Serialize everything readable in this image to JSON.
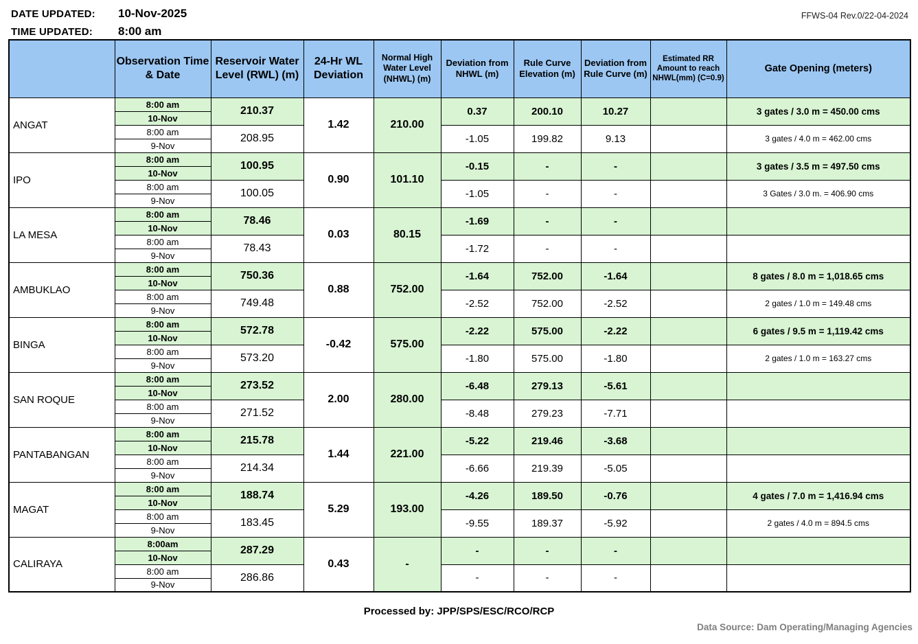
{
  "colors": {
    "header_blue": "#9CC7F3",
    "highlight_green": "#D8F4D3",
    "border_black": "#000000",
    "data_source_gray": "#7F7F7F"
  },
  "meta": {
    "date_label": "DATE UPDATED:",
    "date_value": "10-Nov-2025",
    "time_label": "TIME UPDATED:",
    "time_value": "8:00 am",
    "form_ref": "FFWS-04 Rev.0/22-04-2024"
  },
  "table": {
    "headers": {
      "dam": "",
      "observation": "Observation Time & Date",
      "rwl": "Reservoir Water Level (RWL) (m)",
      "dev24": "24-Hr WL Deviation",
      "nhwl": "Normal High Water Level (NHWL) (m)",
      "dev_nhwl": "Deviation from NHWL (m)",
      "rule_curve": "Rule Curve Elevation (m)",
      "dev_rule": "Deviation from Rule Curve (m)",
      "est_rr": "Estimated RR Amount to reach NHWL(mm) (C=0.9)",
      "gate": "Gate Opening (meters)"
    },
    "dams": [
      {
        "name": "ANGAT",
        "wl_deviation_24hr": "1.42",
        "nhwl": "210.00",
        "current": {
          "time": "8:00 am",
          "date": "10-Nov",
          "rwl": "210.37",
          "dev_nhwl": "0.37",
          "rule_curve": "200.10",
          "dev_rule": "10.27",
          "est_rr": "",
          "gate": "3 gates / 3.0 m = 450.00 cms"
        },
        "previous": {
          "time": "8:00 am",
          "date": "9-Nov",
          "rwl": "208.95",
          "dev_nhwl": "-1.05",
          "rule_curve": "199.82",
          "dev_rule": "9.13",
          "est_rr": "",
          "gate": "3 gates / 4.0 m = 462.00 cms"
        }
      },
      {
        "name": "IPO",
        "wl_deviation_24hr": "0.90",
        "nhwl": "101.10",
        "current": {
          "time": "8:00 am",
          "date": "10-Nov",
          "rwl": "100.95",
          "dev_nhwl": "-0.15",
          "rule_curve": "-",
          "dev_rule": "-",
          "est_rr": "",
          "gate": "3 gates / 3.5 m = 497.50 cms"
        },
        "previous": {
          "time": "8:00 am",
          "date": "9-Nov",
          "rwl": "100.05",
          "dev_nhwl": "-1.05",
          "rule_curve": "-",
          "dev_rule": "-",
          "est_rr": "",
          "gate": "3 Gates / 3.0 m. = 406.90 cms"
        }
      },
      {
        "name": "LA MESA",
        "wl_deviation_24hr": "0.03",
        "nhwl": "80.15",
        "current": {
          "time": "8:00 am",
          "date": "10-Nov",
          "rwl": "78.46",
          "dev_nhwl": "-1.69",
          "rule_curve": "-",
          "dev_rule": "-",
          "est_rr": "",
          "gate": ""
        },
        "previous": {
          "time": "8:00 am",
          "date": "9-Nov",
          "rwl": "78.43",
          "dev_nhwl": "-1.72",
          "rule_curve": "-",
          "dev_rule": "-",
          "est_rr": "",
          "gate": ""
        }
      },
      {
        "name": "AMBUKLAO",
        "wl_deviation_24hr": "0.88",
        "nhwl": "752.00",
        "current": {
          "time": "8:00 am",
          "date": "10-Nov",
          "rwl": "750.36",
          "dev_nhwl": "-1.64",
          "rule_curve": "752.00",
          "dev_rule": "-1.64",
          "est_rr": "",
          "gate": "8 gates / 8.0 m = 1,018.65 cms"
        },
        "previous": {
          "time": "8:00 am",
          "date": "9-Nov",
          "rwl": "749.48",
          "dev_nhwl": "-2.52",
          "rule_curve": "752.00",
          "dev_rule": "-2.52",
          "est_rr": "",
          "gate": "2 gates / 1.0 m = 149.48 cms"
        }
      },
      {
        "name": "BINGA",
        "wl_deviation_24hr": "-0.42",
        "nhwl": "575.00",
        "current": {
          "time": "8:00 am",
          "date": "10-Nov",
          "rwl": "572.78",
          "dev_nhwl": "-2.22",
          "rule_curve": "575.00",
          "dev_rule": "-2.22",
          "est_rr": "",
          "gate": "6 gates / 9.5 m = 1,119.42 cms"
        },
        "previous": {
          "time": "8:00 am",
          "date": "9-Nov",
          "rwl": "573.20",
          "dev_nhwl": "-1.80",
          "rule_curve": "575.00",
          "dev_rule": "-1.80",
          "est_rr": "",
          "gate": "2 gates / 1.0 m = 163.27 cms"
        }
      },
      {
        "name": "SAN ROQUE",
        "wl_deviation_24hr": "2.00",
        "nhwl": "280.00",
        "current": {
          "time": "8:00 am",
          "date": "10-Nov",
          "rwl": "273.52",
          "dev_nhwl": "-6.48",
          "rule_curve": "279.13",
          "dev_rule": "-5.61",
          "est_rr": "",
          "gate": ""
        },
        "previous": {
          "time": "8:00 am",
          "date": "9-Nov",
          "rwl": "271.52",
          "dev_nhwl": "-8.48",
          "rule_curve": "279.23",
          "dev_rule": "-7.71",
          "est_rr": "",
          "gate": ""
        }
      },
      {
        "name": "PANTABANGAN",
        "wl_deviation_24hr": "1.44",
        "nhwl": "221.00",
        "current": {
          "time": "8:00 am",
          "date": "10-Nov",
          "rwl": "215.78",
          "dev_nhwl": "-5.22",
          "rule_curve": "219.46",
          "dev_rule": "-3.68",
          "est_rr": "",
          "gate": ""
        },
        "previous": {
          "time": "8:00 am",
          "date": "9-Nov",
          "rwl": "214.34",
          "dev_nhwl": "-6.66",
          "rule_curve": "219.39",
          "dev_rule": "-5.05",
          "est_rr": "",
          "gate": ""
        }
      },
      {
        "name": "MAGAT",
        "wl_deviation_24hr": "5.29",
        "nhwl": "193.00",
        "current": {
          "time": "8:00 am",
          "date": "10-Nov",
          "rwl": "188.74",
          "dev_nhwl": "-4.26",
          "rule_curve": "189.50",
          "dev_rule": "-0.76",
          "est_rr": "",
          "gate": "4 gates / 7.0 m = 1,416.94 cms"
        },
        "previous": {
          "time": "8:00 am",
          "date": "9-Nov",
          "rwl": "183.45",
          "dev_nhwl": "-9.55",
          "rule_curve": "189.37",
          "dev_rule": "-5.92",
          "est_rr": "",
          "gate": "2 gates / 4.0 m = 894.5 cms"
        }
      },
      {
        "name": "CALIRAYA",
        "wl_deviation_24hr": "0.43",
        "nhwl": "-",
        "current": {
          "time": "8:00am",
          "date": "10-Nov",
          "rwl": "287.29",
          "dev_nhwl": "-",
          "rule_curve": "-",
          "dev_rule": "-",
          "est_rr": "",
          "gate": ""
        },
        "previous": {
          "time": "8:00 am",
          "date": "9-Nov",
          "rwl": "286.86",
          "dev_nhwl": "-",
          "rule_curve": "-",
          "dev_rule": "-",
          "est_rr": "",
          "gate": ""
        }
      }
    ]
  },
  "footer": {
    "processed_by": "Processed by: JPP/SPS/ESC/RCO/RCP",
    "data_source": "Data Source: Dam Operating/Managing Agencies"
  }
}
